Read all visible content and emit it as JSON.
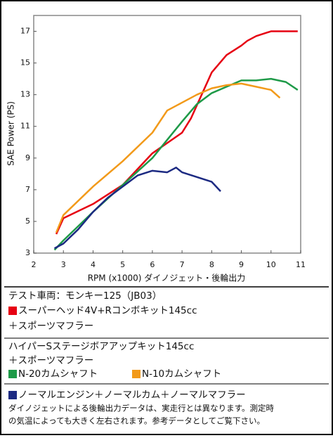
{
  "chart_data": {
    "type": "line",
    "xlabel": "RPM (x1000) ダイノジェット・後輪出力",
    "ylabel": "SAE Power (PS)",
    "xlim": [
      2,
      11
    ],
    "xticks": [
      2,
      3,
      4,
      5,
      6,
      7,
      8,
      9,
      10,
      11
    ],
    "ylim": [
      3,
      18
    ],
    "yticks": [
      3,
      5,
      7,
      9,
      11,
      13,
      15,
      17
    ],
    "grid": false,
    "series": [
      {
        "name": "スーパーヘッド4V+Rコンボキット145cc",
        "color": "#e60012",
        "x": [
          2.76,
          3,
          4,
          5,
          6,
          7,
          7.3,
          8,
          8.5,
          9,
          9.2,
          9.5,
          10,
          10.5,
          10.9
        ],
        "values": [
          4.2,
          5.2,
          6.1,
          7.3,
          9.3,
          10.6,
          11.5,
          14.4,
          15.5,
          16.1,
          16.4,
          16.7,
          17,
          17,
          17
        ]
      },
      {
        "name": "N-20カムシャフト",
        "color": "#1e9a48",
        "x": [
          2.7,
          3,
          4,
          5,
          6,
          7,
          7.5,
          8,
          8.5,
          9,
          9.5,
          10,
          10.5,
          10.9
        ],
        "values": [
          3.2,
          3.8,
          5.6,
          7.3,
          9,
          11.3,
          12.4,
          13.1,
          13.5,
          13.9,
          13.9,
          14,
          13.8,
          13.3
        ]
      },
      {
        "name": "N-10カムシャフト",
        "color": "#f29a1a",
        "x": [
          2.76,
          3,
          4,
          5,
          6,
          6.5,
          7,
          7.5,
          8,
          8.5,
          9,
          9.5,
          10,
          10.3
        ],
        "values": [
          4.3,
          5.4,
          7.2,
          8.8,
          10.6,
          12,
          12.5,
          13,
          13.4,
          13.6,
          13.7,
          13.5,
          13.3,
          12.8
        ]
      },
      {
        "name": "ノーマルエンジン＋ノーマルカム＋ノーマルマフラー",
        "color": "#1c2a82",
        "x": [
          2.7,
          3,
          3.5,
          4,
          4.5,
          5,
          5.5,
          6,
          6.5,
          6.8,
          7,
          7.5,
          8,
          8.3
        ],
        "values": [
          3.3,
          3.6,
          4.5,
          5.6,
          6.5,
          7.2,
          7.9,
          8.2,
          8.1,
          8.4,
          8.1,
          7.8,
          7.5,
          6.9
        ]
      }
    ],
    "legend_texts": {
      "vehicle": "テスト車両：モンキー125（JB03）",
      "red_cont": "＋スポーツマフラー",
      "group2": "ハイパーSステージボアアップキット145cc",
      "group2_cont": "＋スポーツマフラー",
      "note1": "ダイノジェットによる後輪出力データは、実走行とは異なります。測定時",
      "note2": "の気温によっても大きく左右されます。参考データとしてご覧下さい。"
    }
  }
}
